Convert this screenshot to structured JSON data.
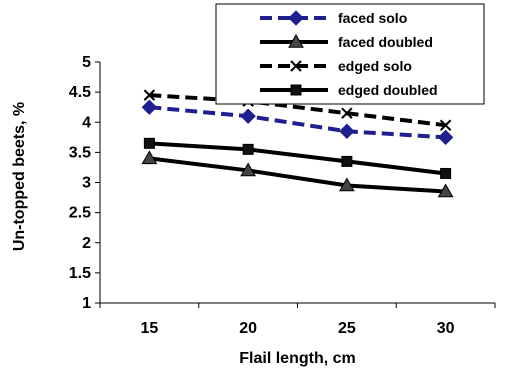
{
  "chart_data": {
    "type": "line",
    "xlabel": "Flail length, cm",
    "ylabel": "Un-topped beets, %",
    "categories": [
      "15",
      "20",
      "25",
      "30"
    ],
    "ylim": [
      1,
      5
    ],
    "yticks": [
      "1",
      "1.5",
      "2",
      "2.5",
      "3",
      "3.5",
      "4",
      "4.5",
      "5"
    ],
    "grid": false,
    "legend_position": "top-right",
    "series": [
      {
        "name": "faced solo",
        "values": [
          4.25,
          4.1,
          3.85,
          3.75
        ],
        "color": "#1f1f8f",
        "dash": "dashed",
        "marker": "diamond"
      },
      {
        "name": "faced doubled",
        "values": [
          3.4,
          3.2,
          2.95,
          2.85
        ],
        "color": "#000000",
        "dash": "solid",
        "marker": "triangle"
      },
      {
        "name": "edged solo",
        "values": [
          4.45,
          4.35,
          4.15,
          3.95
        ],
        "color": "#000000",
        "dash": "dashed",
        "marker": "x"
      },
      {
        "name": "edged doubled",
        "values": [
          3.65,
          3.55,
          3.35,
          3.15
        ],
        "color": "#000000",
        "dash": "solid",
        "marker": "square"
      }
    ]
  }
}
